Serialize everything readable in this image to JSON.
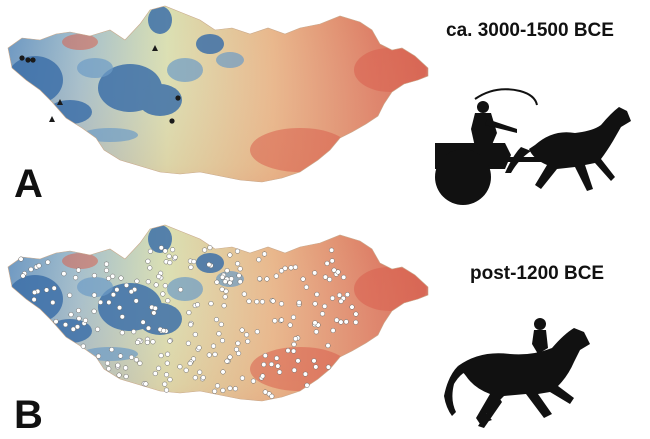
{
  "panels": [
    {
      "letter": "A",
      "period": "ca. 3000-1500 BCE",
      "site_markers": "circles and triangles",
      "silhouette": "chariot-with-rider-silhouette"
    },
    {
      "letter": "B",
      "period": "post-1200 BCE",
      "site_markers": "white circles",
      "silhouette": "horse-rider-silhouette"
    }
  ],
  "colors": {
    "high_elevation": "#3b6fa8",
    "mid_elevation": "#d8dfb0",
    "low_elevation": "#d9604f",
    "site_a": "#1a1a1a",
    "site_b": "#ffffff",
    "silhouette": "#111111"
  }
}
